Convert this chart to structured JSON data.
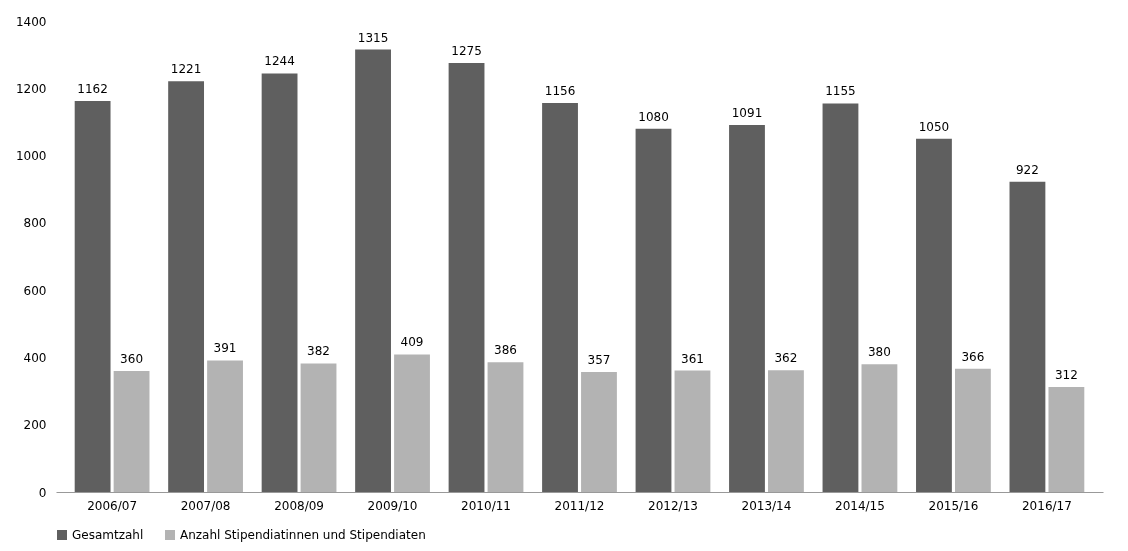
{
  "chart_data": {
    "type": "bar",
    "categories": [
      "2006/07",
      "2007/08",
      "2008/09",
      "2009/10",
      "2010/11",
      "2011/12",
      "2012/13",
      "2013/14",
      "2014/15",
      "2015/16",
      "2016/17"
    ],
    "series": [
      {
        "name": "Gesamtzahl",
        "color": "#5f5f5f",
        "values": [
          1162,
          1221,
          1244,
          1315,
          1275,
          1156,
          1080,
          1091,
          1155,
          1050,
          922
        ]
      },
      {
        "name": "Anzahl Stipendiatinnen und Stipendiaten",
        "color": "#b3b3b3",
        "values": [
          360,
          391,
          382,
          409,
          386,
          357,
          361,
          362,
          380,
          366,
          312
        ]
      }
    ],
    "ylim": [
      0,
      1400
    ],
    "yticks": [
      0,
      200,
      400,
      600,
      800,
      1000,
      1200,
      1400
    ],
    "grid": false,
    "legend": "bottom",
    "data_labels": true
  }
}
